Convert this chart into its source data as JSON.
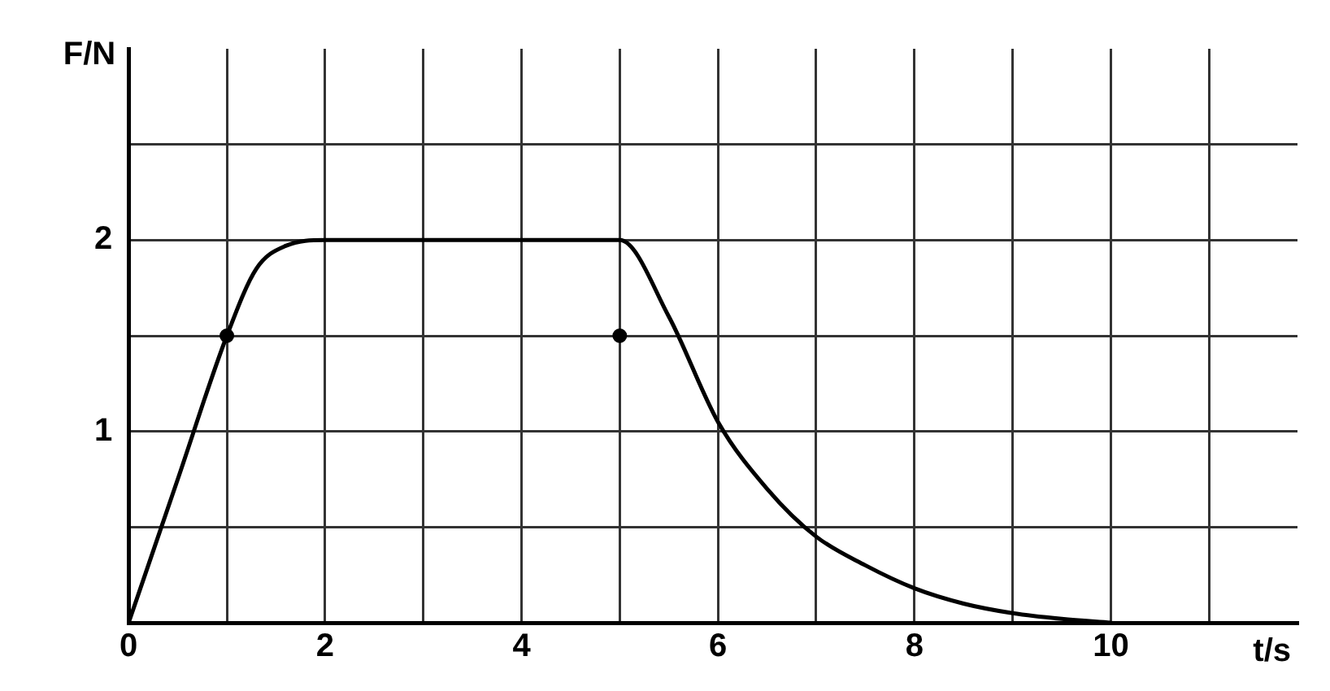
{
  "chart_data": {
    "type": "line",
    "xlabel": "t/s",
    "ylabel": "F/N",
    "xlim": [
      0,
      11.9
    ],
    "ylim": [
      0,
      3
    ],
    "xticks": [
      0,
      {
        "value": 1,
        "label": null
      },
      2,
      {
        "value": 3,
        "label": null
      },
      4,
      {
        "value": 5,
        "label": null
      },
      6,
      {
        "value": 7,
        "label": null
      },
      8,
      {
        "value": 9,
        "label": null
      },
      10,
      {
        "value": 11,
        "label": null
      }
    ],
    "yticks": [
      {
        "value": 0.5,
        "label": null
      },
      1,
      {
        "value": 1.5,
        "label": null
      },
      2,
      {
        "value": 2.5,
        "label": null
      }
    ],
    "grid": true,
    "legend": false,
    "series": [
      {
        "type": "line",
        "color": "#000000",
        "marker": "none",
        "line_style": "solid",
        "x": [
          0,
          0.5,
          1,
          1.3,
          1.6,
          2,
          5,
          5.5,
          6,
          6.5,
          7,
          7.5,
          8,
          8.5,
          9,
          9.5,
          10
        ],
        "values": [
          0,
          0.75,
          1.5,
          1.85,
          1.97,
          2,
          2,
          1.6,
          1.05,
          0.7,
          0.45,
          0.3,
          0.18,
          0.1,
          0.05,
          0.02,
          0
        ]
      },
      {
        "type": "scatter",
        "color": "#000000",
        "marker": "circle",
        "x": [
          1,
          5
        ],
        "values": [
          1.5,
          1.5
        ]
      }
    ]
  }
}
